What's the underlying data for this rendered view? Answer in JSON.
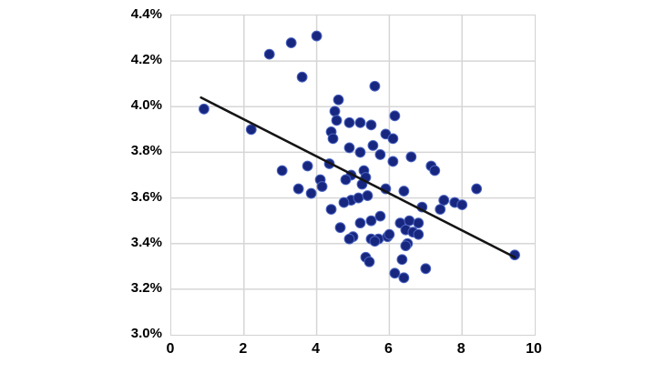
{
  "chart_data": {
    "type": "scatter",
    "title": "",
    "xlabel": "",
    "ylabel": "",
    "xlim": [
      0,
      10
    ],
    "ylim": [
      3.0,
      4.4
    ],
    "x_ticks": [
      0,
      2,
      4,
      6,
      8,
      10
    ],
    "y_ticks": [
      4.4,
      4.2,
      4.0,
      3.8,
      3.6,
      3.4,
      3.2,
      3.0
    ],
    "y_tick_suffix": "%",
    "grid": true,
    "legend": "none",
    "marker": "circle",
    "points": [
      [
        0.9,
        3.99
      ],
      [
        2.2,
        3.9
      ],
      [
        2.7,
        4.23
      ],
      [
        3.3,
        4.28
      ],
      [
        4.0,
        4.31
      ],
      [
        3.6,
        4.13
      ],
      [
        4.6,
        4.03
      ],
      [
        5.6,
        4.09
      ],
      [
        4.5,
        3.98
      ],
      [
        4.55,
        3.94
      ],
      [
        4.9,
        3.93
      ],
      [
        4.4,
        3.89
      ],
      [
        5.2,
        3.93
      ],
      [
        5.5,
        3.92
      ],
      [
        6.15,
        3.96
      ],
      [
        5.9,
        3.88
      ],
      [
        6.1,
        3.86
      ],
      [
        4.45,
        3.86
      ],
      [
        4.9,
        3.82
      ],
      [
        5.2,
        3.8
      ],
      [
        5.55,
        3.83
      ],
      [
        5.75,
        3.79
      ],
      [
        3.05,
        3.72
      ],
      [
        3.75,
        3.74
      ],
      [
        4.35,
        3.75
      ],
      [
        5.3,
        3.72
      ],
      [
        5.35,
        3.69
      ],
      [
        4.95,
        3.7
      ],
      [
        6.1,
        3.76
      ],
      [
        6.6,
        3.78
      ],
      [
        7.15,
        3.74
      ],
      [
        7.25,
        3.72
      ],
      [
        3.5,
        3.64
      ],
      [
        3.85,
        3.62
      ],
      [
        4.1,
        3.68
      ],
      [
        4.15,
        3.65
      ],
      [
        4.8,
        3.68
      ],
      [
        5.25,
        3.66
      ],
      [
        5.9,
        3.64
      ],
      [
        6.4,
        3.63
      ],
      [
        4.95,
        3.59
      ],
      [
        5.15,
        3.6
      ],
      [
        5.4,
        3.61
      ],
      [
        4.4,
        3.55
      ],
      [
        4.75,
        3.58
      ],
      [
        5.75,
        3.52
      ],
      [
        5.5,
        3.5
      ],
      [
        5.2,
        3.49
      ],
      [
        6.9,
        3.56
      ],
      [
        7.5,
        3.59
      ],
      [
        7.8,
        3.58
      ],
      [
        8.0,
        3.57
      ],
      [
        8.4,
        3.64
      ],
      [
        7.4,
        3.55
      ],
      [
        4.65,
        3.47
      ],
      [
        5.0,
        3.43
      ],
      [
        4.9,
        3.42
      ],
      [
        5.5,
        3.42
      ],
      [
        5.7,
        3.42
      ],
      [
        5.95,
        3.43
      ],
      [
        5.6,
        3.41
      ],
      [
        6.0,
        3.44
      ],
      [
        6.3,
        3.49
      ],
      [
        6.55,
        3.5
      ],
      [
        6.45,
        3.46
      ],
      [
        6.65,
        3.45
      ],
      [
        6.5,
        3.4
      ],
      [
        6.45,
        3.39
      ],
      [
        6.8,
        3.49
      ],
      [
        6.8,
        3.44
      ],
      [
        5.35,
        3.34
      ],
      [
        5.45,
        3.32
      ],
      [
        6.35,
        3.33
      ],
      [
        7.0,
        3.29
      ],
      [
        6.15,
        3.27
      ],
      [
        6.4,
        3.25
      ],
      [
        9.45,
        3.35
      ]
    ],
    "trendline": {
      "x1": 0.82,
      "y1": 4.04,
      "x2": 9.45,
      "y2": 3.34
    },
    "colors": {
      "point": "#17267e",
      "point_edge": "#4a63c0",
      "trend": "#151515",
      "grid": "#d6d6d6",
      "text": "#000000",
      "background": "#ffffff"
    }
  }
}
